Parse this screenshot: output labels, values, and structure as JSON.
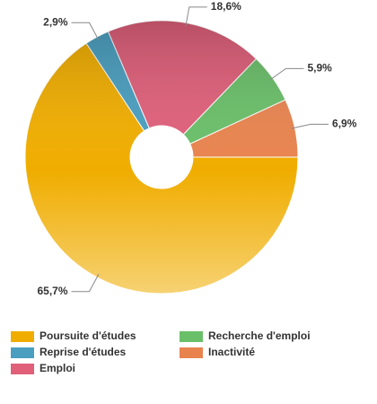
{
  "chart_data": {
    "type": "donut",
    "categories": [
      "Poursuite d'études",
      "Reprise d'études",
      "Emploi",
      "Recherche d'emploi",
      "Inactivité"
    ],
    "values": [
      65.7,
      2.9,
      18.6,
      5.9,
      6.9
    ],
    "value_labels": [
      "65,7%",
      "2,9%",
      "18,6%",
      "5,9%",
      "6,9%"
    ],
    "colors": [
      "#f0ad00",
      "#4a9fc0",
      "#e0607a",
      "#6abf69",
      "#e8834e"
    ],
    "legend": "bottom"
  }
}
